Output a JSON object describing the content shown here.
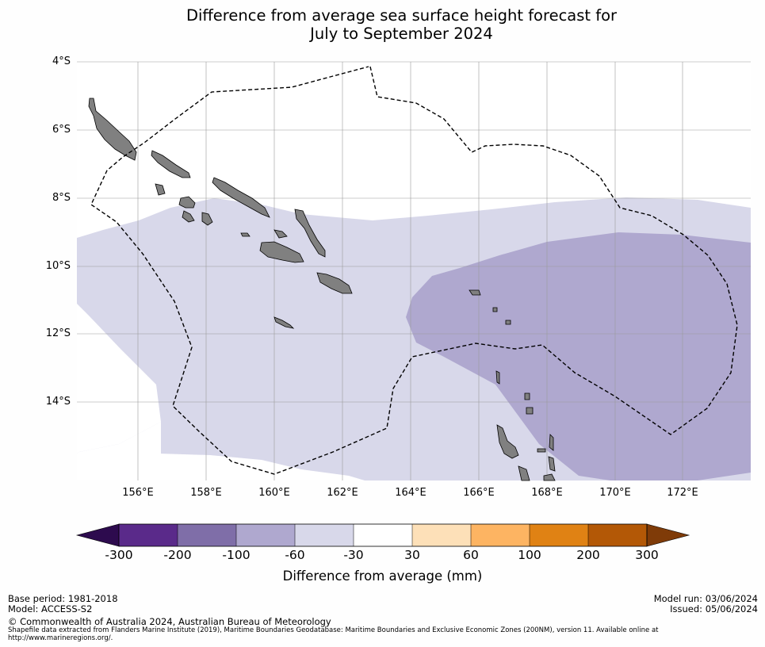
{
  "title_line1": "Difference from average sea surface height forecast for",
  "title_line2": "July to September 2024",
  "lat_labels": [
    "4°S",
    "6°S",
    "8°S",
    "10°S",
    "12°S",
    "14°S"
  ],
  "lon_labels": [
    "156°E",
    "158°E",
    "160°E",
    "162°E",
    "164°E",
    "166°E",
    "168°E",
    "170°E",
    "172°E"
  ],
  "colorbar": {
    "title": "Difference from average (mm)",
    "ticks": [
      "-300",
      "-200",
      "-100",
      "-60",
      "-30",
      "30",
      "60",
      "100",
      "200",
      "300"
    ],
    "colors": {
      "under": "#2d0b4e",
      "c1": "#5a2a8a",
      "c2": "#7f6ea8",
      "c3": "#afa8cf",
      "c4": "#d8d8ea",
      "c5": "#ffffff",
      "c6": "#fde0b8",
      "c7": "#fdb462",
      "c8": "#e08214",
      "c9": "#b35806",
      "over": "#7f3b08"
    }
  },
  "map_colors": {
    "band_light": "#d8d8ea",
    "band_mid": "#afa8cf",
    "land": "#808080"
  },
  "footer": {
    "base_period": "Base period: 1981-2018",
    "model": "Model: ACCESS-S2",
    "copyright": "© Commonwealth of Australia 2024, Australian Bureau of Meteorology",
    "shapefile_line1": "Shapefile data extracted from Flanders Marine Institute (2019), Maritime Boundaries Geodatabase: Maritime Boundaries and Exclusive Economic Zones (200NM), version 11. Available online at",
    "shapefile_line2": "http://www.marineregions.org/.",
    "model_run": "Model run: 03/06/2024",
    "issued": "Issued: 05/06/2024"
  }
}
